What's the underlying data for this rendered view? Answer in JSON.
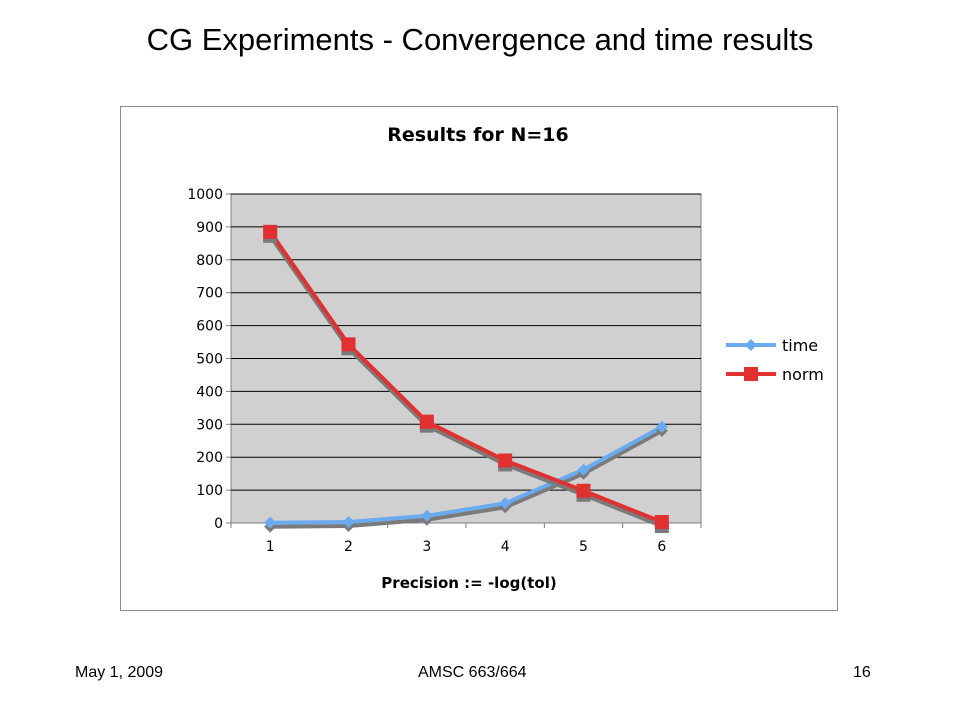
{
  "slide": {
    "title": "CG Experiments - Convergence and time results"
  },
  "footer": {
    "date": "May 1, 2009",
    "course": "AMSC 663/664",
    "page": "16"
  },
  "colors": {
    "plot_background": "#d0d0d0",
    "time": "#6aaaf0",
    "norm": "#e03030",
    "shadow": "#7a7a7a"
  },
  "chart_data": {
    "type": "line",
    "title": "Results for N=16",
    "xlabel": "Precision := -log(tol)",
    "ylabel": "",
    "categories": [
      "1",
      "2",
      "3",
      "4",
      "5",
      "6"
    ],
    "ylim": [
      0,
      1000
    ],
    "yticks": [
      "0",
      "100",
      "200",
      "300",
      "400",
      "500",
      "600",
      "700",
      "800",
      "900",
      "1000"
    ],
    "grid": true,
    "legend_position": "right",
    "series": [
      {
        "name": "time",
        "values": [
          1,
          3,
          22,
          60,
          162,
          292
        ],
        "marker": "diamond",
        "color": "#6aaaf0"
      },
      {
        "name": "norm",
        "values": [
          885,
          543,
          308,
          190,
          98,
          3
        ],
        "marker": "square",
        "color": "#e03030"
      }
    ]
  }
}
